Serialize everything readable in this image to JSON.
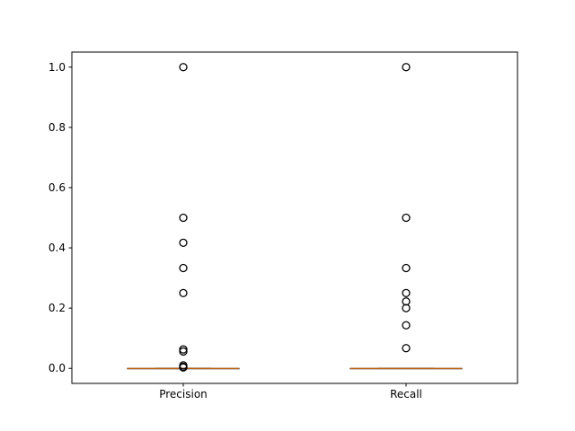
{
  "chart_data": {
    "type": "box",
    "title": "",
    "xlabel": "",
    "ylabel": "",
    "ylim": [
      -0.05,
      1.05
    ],
    "yticks": [
      0.0,
      0.2,
      0.4,
      0.6,
      0.8,
      1.0
    ],
    "ytick_labels": [
      "0.0",
      "0.2",
      "0.4",
      "0.6",
      "0.8",
      "1.0"
    ],
    "grid": false,
    "categories": [
      "Precision",
      "Recall"
    ],
    "series": [
      {
        "category": "Precision",
        "whisker_low": 0.0,
        "q1": 0.0,
        "median": 0.0,
        "q3": 0.0,
        "whisker_high": 0.0,
        "outliers": [
          1.0,
          0.5,
          0.417,
          0.333,
          0.25,
          0.063,
          0.056,
          0.01,
          0.005,
          0.003
        ]
      },
      {
        "category": "Recall",
        "whisker_low": 0.0,
        "q1": 0.0,
        "median": 0.0,
        "q3": 0.0,
        "whisker_high": 0.0,
        "outliers": [
          1.0,
          0.5,
          0.333,
          0.25,
          0.222,
          0.2,
          0.143,
          0.067
        ]
      }
    ],
    "colors": {
      "median": "#ff7f0e",
      "box": "#000000",
      "flier": "#000000",
      "axes": "#000000"
    }
  }
}
